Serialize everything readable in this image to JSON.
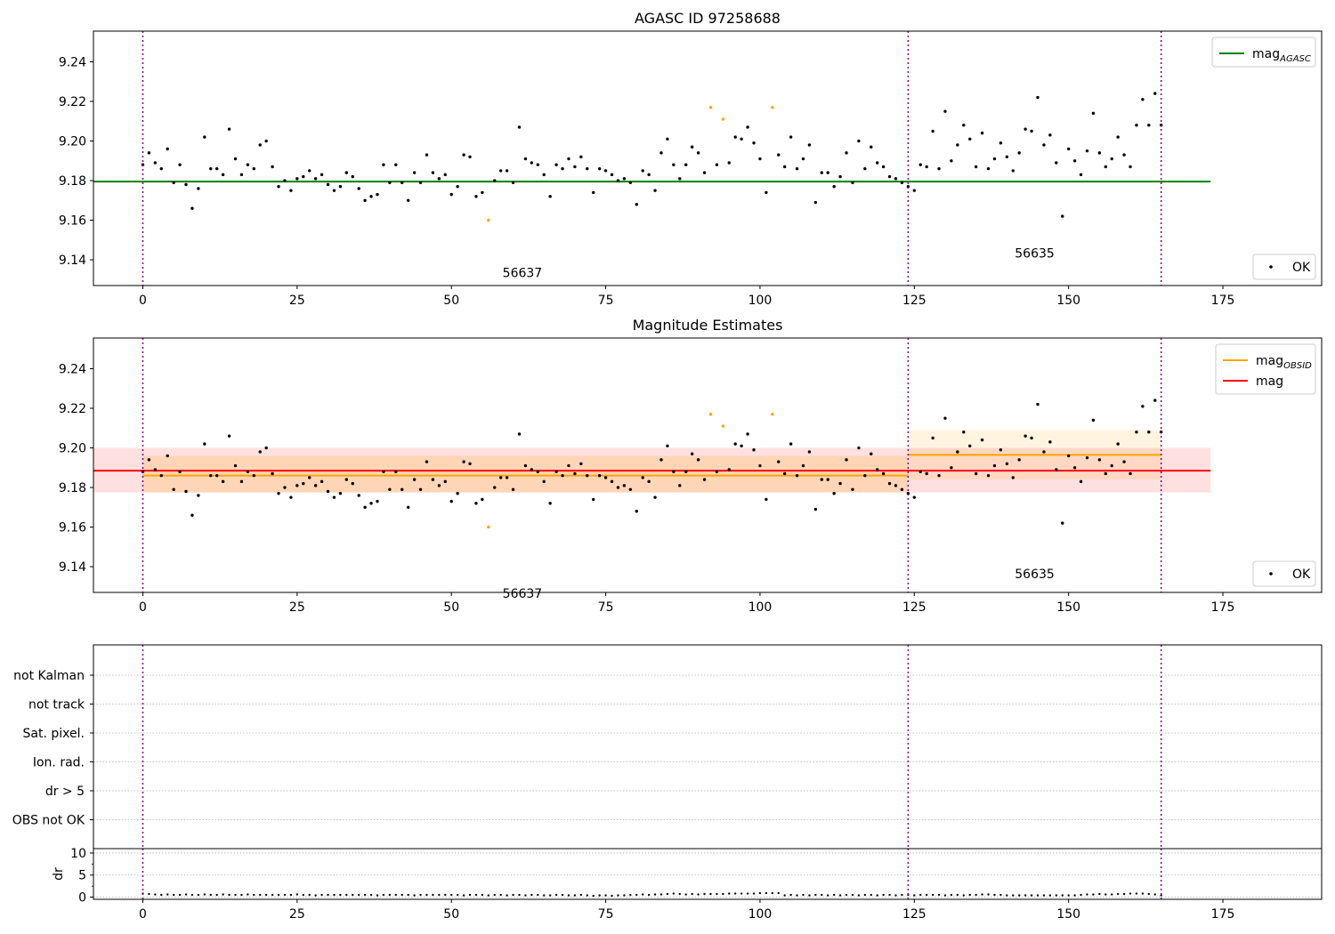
{
  "chart_data": [
    {
      "type": "scatter",
      "title": "AGASC ID 97258688",
      "xlabel": "",
      "ylabel": "",
      "xlim": [
        -8,
        191
      ],
      "ylim": [
        9.127,
        9.2555
      ],
      "xticks": [
        0,
        25,
        50,
        75,
        100,
        125,
        150,
        175
      ],
      "yticks": [
        9.14,
        9.16,
        9.18,
        9.2,
        9.22,
        9.24
      ],
      "grid": false,
      "legend_upper": {
        "position": "top-right",
        "entries": [
          {
            "label": "mag",
            "sub": "AGASC",
            "color": "#008000",
            "kind": "line"
          }
        ]
      },
      "legend_lower": {
        "position": "bottom-right",
        "entries": [
          {
            "label": "OK",
            "color": "#000000",
            "kind": "point"
          }
        ]
      },
      "vlines": [
        0,
        124,
        165
      ],
      "annotations": [
        {
          "text": "56637",
          "x": 61.5,
          "y": 9.1335
        },
        {
          "text": "56635",
          "x": 144.5,
          "y": 9.1435
        }
      ],
      "hlines": [
        {
          "name": "mag_AGASC",
          "y": 9.1795,
          "x": [
            -8,
            173
          ],
          "color": "#008000"
        }
      ],
      "series": [
        {
          "name": "OK",
          "color": "#000000",
          "points": "main"
        },
        {
          "name": "",
          "color": "#ffa500",
          "points": "flagged"
        }
      ]
    },
    {
      "type": "scatter",
      "title": "Magnitude Estimates",
      "xlabel": "",
      "ylabel": "",
      "xlim": [
        -8,
        191
      ],
      "ylim": [
        9.127,
        9.2555
      ],
      "xticks": [
        0,
        25,
        50,
        75,
        100,
        125,
        150,
        175
      ],
      "yticks": [
        9.14,
        9.16,
        9.18,
        9.2,
        9.22,
        9.24
      ],
      "grid": false,
      "legend_upper": {
        "position": "top-right",
        "entries": [
          {
            "label": "mag",
            "sub": "OBSID",
            "color": "#ffa500",
            "kind": "line"
          },
          {
            "label": "mag",
            "sub": "",
            "color": "#ff0000",
            "kind": "line"
          }
        ]
      },
      "legend_lower": {
        "position": "bottom-right",
        "entries": [
          {
            "label": "OK",
            "color": "#000000",
            "kind": "point"
          }
        ]
      },
      "vlines": [
        0,
        124,
        165
      ],
      "annotations": [
        {
          "text": "56637",
          "x": 61.5,
          "y": 9.1265
        },
        {
          "text": "56635",
          "x": 144.5,
          "y": 9.1365
        }
      ],
      "bands": [
        {
          "x": [
            -8,
            173
          ],
          "y": [
            9.1775,
            9.2
          ],
          "color": "#ff0000",
          "opacity": 0.12
        },
        {
          "x": [
            0,
            124
          ],
          "y": [
            9.1775,
            9.196
          ],
          "color": "#ffa500",
          "opacity": 0.18
        },
        {
          "x": [
            124,
            165
          ],
          "y": [
            9.184,
            9.209
          ],
          "color": "#ffa500",
          "opacity": 0.12
        }
      ],
      "hlines": [
        {
          "name": "mag",
          "y": 9.1885,
          "x": [
            -8,
            173
          ],
          "color": "#ff0000"
        },
        {
          "name": "mag_OBSID",
          "y": 9.186,
          "x": [
            0,
            124
          ],
          "color": "#ffa500"
        },
        {
          "name": "mag_OBSID",
          "y": 9.1965,
          "x": [
            124,
            165
          ],
          "color": "#ffa500"
        }
      ],
      "series": [
        {
          "name": "OK",
          "color": "#000000",
          "points": "main"
        },
        {
          "name": "",
          "color": "#ffa500",
          "points": "flagged"
        }
      ]
    },
    {
      "type": "scatter",
      "title": "",
      "xlabel": "",
      "ylabel": "",
      "xlim": [
        -8,
        191
      ],
      "categories": [
        "not Kalman",
        "not track",
        "Sat. pixel.",
        "Ion. rad.",
        "dr > 5",
        "OBS not OK"
      ],
      "grid": true,
      "vlines": [
        0,
        124,
        165
      ],
      "series": []
    },
    {
      "type": "scatter",
      "title": "",
      "xlabel": "",
      "ylabel": "dr",
      "xlim": [
        -8,
        191
      ],
      "ylim": [
        -0.5,
        11
      ],
      "xticks": [
        0,
        25,
        50,
        75,
        100,
        125,
        150,
        175
      ],
      "yticks": [
        0,
        5,
        10
      ],
      "grid": true,
      "vlines": [
        0,
        124,
        165
      ],
      "series": [
        {
          "name": "dr",
          "color": "#000000",
          "points": "dr"
        }
      ]
    }
  ],
  "points": {
    "main": [
      [
        0,
        9.188
      ],
      [
        1,
        9.194
      ],
      [
        2,
        9.189
      ],
      [
        3,
        9.186
      ],
      [
        4,
        9.196
      ],
      [
        5,
        9.179
      ],
      [
        6,
        9.188
      ],
      [
        7,
        9.178
      ],
      [
        8,
        9.166
      ],
      [
        9,
        9.176
      ],
      [
        10,
        9.202
      ],
      [
        11,
        9.186
      ],
      [
        12,
        9.186
      ],
      [
        13,
        9.183
      ],
      [
        14,
        9.206
      ],
      [
        15,
        9.191
      ],
      [
        16,
        9.183
      ],
      [
        17,
        9.188
      ],
      [
        18,
        9.186
      ],
      [
        19,
        9.198
      ],
      [
        20,
        9.2
      ],
      [
        21,
        9.187
      ],
      [
        22,
        9.177
      ],
      [
        23,
        9.18
      ],
      [
        24,
        9.175
      ],
      [
        25,
        9.181
      ],
      [
        26,
        9.182
      ],
      [
        27,
        9.185
      ],
      [
        28,
        9.181
      ],
      [
        29,
        9.183
      ],
      [
        30,
        9.178
      ],
      [
        31,
        9.175
      ],
      [
        32,
        9.177
      ],
      [
        33,
        9.184
      ],
      [
        34,
        9.182
      ],
      [
        35,
        9.176
      ],
      [
        36,
        9.17
      ],
      [
        37,
        9.172
      ],
      [
        38,
        9.173
      ],
      [
        39,
        9.188
      ],
      [
        40,
        9.179
      ],
      [
        41,
        9.188
      ],
      [
        42,
        9.179
      ],
      [
        43,
        9.17
      ],
      [
        44,
        9.184
      ],
      [
        45,
        9.179
      ],
      [
        46,
        9.193
      ],
      [
        47,
        9.184
      ],
      [
        48,
        9.181
      ],
      [
        49,
        9.183
      ],
      [
        50,
        9.173
      ],
      [
        51,
        9.177
      ],
      [
        52,
        9.193
      ],
      [
        53,
        9.192
      ],
      [
        54,
        9.172
      ],
      [
        55,
        9.174
      ],
      [
        57,
        9.18
      ],
      [
        58,
        9.185
      ],
      [
        59,
        9.185
      ],
      [
        60,
        9.179
      ],
      [
        61,
        9.207
      ],
      [
        62,
        9.191
      ],
      [
        63,
        9.189
      ],
      [
        64,
        9.188
      ],
      [
        65,
        9.183
      ],
      [
        66,
        9.172
      ],
      [
        67,
        9.188
      ],
      [
        68,
        9.186
      ],
      [
        69,
        9.191
      ],
      [
        70,
        9.187
      ],
      [
        71,
        9.192
      ],
      [
        72,
        9.186
      ],
      [
        73,
        9.174
      ],
      [
        74,
        9.186
      ],
      [
        75,
        9.185
      ],
      [
        76,
        9.183
      ],
      [
        77,
        9.18
      ],
      [
        78,
        9.181
      ],
      [
        79,
        9.179
      ],
      [
        80,
        9.168
      ],
      [
        81,
        9.185
      ],
      [
        82,
        9.183
      ],
      [
        83,
        9.175
      ],
      [
        84,
        9.194
      ],
      [
        85,
        9.201
      ],
      [
        86,
        9.188
      ],
      [
        87,
        9.181
      ],
      [
        88,
        9.188
      ],
      [
        89,
        9.197
      ],
      [
        90,
        9.194
      ],
      [
        91,
        9.184
      ],
      [
        93,
        9.188
      ],
      [
        95,
        9.189
      ],
      [
        96,
        9.202
      ],
      [
        97,
        9.201
      ],
      [
        98,
        9.207
      ],
      [
        99,
        9.199
      ],
      [
        100,
        9.191
      ],
      [
        101,
        9.174
      ],
      [
        103,
        9.193
      ],
      [
        104,
        9.187
      ],
      [
        105,
        9.202
      ],
      [
        106,
        9.186
      ],
      [
        107,
        9.191
      ],
      [
        108,
        9.198
      ],
      [
        109,
        9.169
      ],
      [
        110,
        9.184
      ],
      [
        111,
        9.184
      ],
      [
        112,
        9.177
      ],
      [
        113,
        9.182
      ],
      [
        114,
        9.194
      ],
      [
        115,
        9.179
      ],
      [
        116,
        9.2
      ],
      [
        117,
        9.186
      ],
      [
        118,
        9.197
      ],
      [
        119,
        9.189
      ],
      [
        120,
        9.187
      ],
      [
        121,
        9.182
      ],
      [
        122,
        9.181
      ],
      [
        123,
        9.179
      ],
      [
        124,
        9.177
      ],
      [
        125,
        9.175
      ],
      [
        126,
        9.188
      ],
      [
        127,
        9.187
      ],
      [
        128,
        9.205
      ],
      [
        129,
        9.186
      ],
      [
        130,
        9.215
      ],
      [
        131,
        9.19
      ],
      [
        132,
        9.198
      ],
      [
        133,
        9.208
      ],
      [
        134,
        9.201
      ],
      [
        135,
        9.187
      ],
      [
        136,
        9.204
      ],
      [
        137,
        9.186
      ],
      [
        138,
        9.191
      ],
      [
        139,
        9.199
      ],
      [
        140,
        9.192
      ],
      [
        141,
        9.185
      ],
      [
        142,
        9.194
      ],
      [
        143,
        9.206
      ],
      [
        144,
        9.205
      ],
      [
        145,
        9.222
      ],
      [
        146,
        9.198
      ],
      [
        147,
        9.203
      ],
      [
        148,
        9.189
      ],
      [
        149,
        9.162
      ],
      [
        150,
        9.196
      ],
      [
        151,
        9.19
      ],
      [
        152,
        9.183
      ],
      [
        153,
        9.195
      ],
      [
        154,
        9.214
      ],
      [
        155,
        9.194
      ],
      [
        156,
        9.187
      ],
      [
        157,
        9.191
      ],
      [
        158,
        9.202
      ],
      [
        159,
        9.193
      ],
      [
        160,
        9.187
      ],
      [
        161,
        9.208
      ],
      [
        162,
        9.221
      ],
      [
        163,
        9.208
      ],
      [
        164,
        9.224
      ],
      [
        165,
        9.208
      ]
    ],
    "flagged": [
      [
        56,
        9.16
      ],
      [
        92,
        9.217
      ],
      [
        94,
        9.211
      ],
      [
        102,
        9.217
      ]
    ],
    "dr": [
      [
        0,
        0.8
      ],
      [
        1,
        0.7
      ],
      [
        2,
        0.6
      ],
      [
        3,
        0.5
      ],
      [
        4,
        0.6
      ],
      [
        5,
        0.5
      ],
      [
        6,
        0.5
      ],
      [
        7,
        0.6
      ],
      [
        8,
        0.5
      ],
      [
        9,
        0.5
      ],
      [
        10,
        0.6
      ],
      [
        11,
        0.5
      ],
      [
        12,
        0.5
      ],
      [
        13,
        0.6
      ],
      [
        14,
        0.5
      ],
      [
        15,
        0.5
      ],
      [
        16,
        0.5
      ],
      [
        17,
        0.6
      ],
      [
        18,
        0.5
      ],
      [
        19,
        0.5
      ],
      [
        20,
        0.5
      ],
      [
        21,
        0.5
      ],
      [
        22,
        0.5
      ],
      [
        23,
        0.5
      ],
      [
        24,
        0.5
      ],
      [
        25,
        0.6
      ],
      [
        26,
        0.5
      ],
      [
        27,
        0.5
      ],
      [
        28,
        0.4
      ],
      [
        29,
        0.5
      ],
      [
        30,
        0.5
      ],
      [
        31,
        0.5
      ],
      [
        32,
        0.5
      ],
      [
        33,
        0.5
      ],
      [
        34,
        0.5
      ],
      [
        35,
        0.5
      ],
      [
        36,
        0.5
      ],
      [
        37,
        0.5
      ],
      [
        38,
        0.4
      ],
      [
        39,
        0.5
      ],
      [
        40,
        0.5
      ],
      [
        41,
        0.5
      ],
      [
        42,
        0.5
      ],
      [
        43,
        0.5
      ],
      [
        44,
        0.4
      ],
      [
        45,
        0.5
      ],
      [
        46,
        0.5
      ],
      [
        47,
        0.5
      ],
      [
        48,
        0.5
      ],
      [
        49,
        0.5
      ],
      [
        50,
        0.5
      ],
      [
        51,
        0.5
      ],
      [
        52,
        0.4
      ],
      [
        53,
        0.5
      ],
      [
        54,
        0.5
      ],
      [
        55,
        0.5
      ],
      [
        56,
        0.4
      ],
      [
        57,
        0.5
      ],
      [
        58,
        0.5
      ],
      [
        59,
        0.4
      ],
      [
        60,
        0.5
      ],
      [
        61,
        0.5
      ],
      [
        62,
        0.4
      ],
      [
        63,
        0.5
      ],
      [
        64,
        0.5
      ],
      [
        65,
        0.4
      ],
      [
        66,
        0.4
      ],
      [
        67,
        0.5
      ],
      [
        68,
        0.5
      ],
      [
        69,
        0.4
      ],
      [
        70,
        0.4
      ],
      [
        71,
        0.5
      ],
      [
        72,
        0.4
      ],
      [
        73,
        0.3
      ],
      [
        74,
        0.4
      ],
      [
        75,
        0.4
      ],
      [
        76,
        0.3
      ],
      [
        77,
        0.4
      ],
      [
        78,
        0.4
      ],
      [
        79,
        0.5
      ],
      [
        80,
        0.5
      ],
      [
        81,
        0.6
      ],
      [
        82,
        0.5
      ],
      [
        83,
        0.6
      ],
      [
        84,
        0.6
      ],
      [
        85,
        0.7
      ],
      [
        86,
        0.8
      ],
      [
        87,
        0.7
      ],
      [
        88,
        0.6
      ],
      [
        89,
        0.7
      ],
      [
        90,
        0.6
      ],
      [
        91,
        0.7
      ],
      [
        92,
        0.7
      ],
      [
        93,
        0.7
      ],
      [
        94,
        0.7
      ],
      [
        95,
        0.8
      ],
      [
        96,
        0.8
      ],
      [
        97,
        0.8
      ],
      [
        98,
        0.8
      ],
      [
        99,
        0.8
      ],
      [
        100,
        0.9
      ],
      [
        101,
        0.9
      ],
      [
        102,
        0.9
      ],
      [
        103,
        0.9
      ],
      [
        104,
        0.4
      ],
      [
        105,
        0.5
      ],
      [
        106,
        0.4
      ],
      [
        107,
        0.5
      ],
      [
        108,
        0.4
      ],
      [
        109,
        0.5
      ],
      [
        110,
        0.5
      ],
      [
        111,
        0.4
      ],
      [
        112,
        0.5
      ],
      [
        113,
        0.4
      ],
      [
        114,
        0.5
      ],
      [
        115,
        0.5
      ],
      [
        116,
        0.4
      ],
      [
        117,
        0.5
      ],
      [
        118,
        0.5
      ],
      [
        119,
        0.4
      ],
      [
        120,
        0.5
      ],
      [
        121,
        0.5
      ],
      [
        122,
        0.4
      ],
      [
        123,
        0.5
      ],
      [
        124,
        0.5
      ],
      [
        125,
        0.4
      ],
      [
        126,
        0.5
      ],
      [
        127,
        0.5
      ],
      [
        128,
        0.5
      ],
      [
        129,
        0.5
      ],
      [
        130,
        0.4
      ],
      [
        131,
        0.5
      ],
      [
        132,
        0.5
      ],
      [
        133,
        0.4
      ],
      [
        134,
        0.5
      ],
      [
        135,
        0.5
      ],
      [
        136,
        0.6
      ],
      [
        137,
        0.6
      ],
      [
        138,
        0.5
      ],
      [
        139,
        0.5
      ],
      [
        140,
        0.4
      ],
      [
        141,
        0.4
      ],
      [
        142,
        0.4
      ],
      [
        143,
        0.4
      ],
      [
        144,
        0.4
      ],
      [
        145,
        0.4
      ],
      [
        146,
        0.4
      ],
      [
        147,
        0.4
      ],
      [
        148,
        0.4
      ],
      [
        149,
        0.4
      ],
      [
        150,
        0.4
      ],
      [
        151,
        0.4
      ],
      [
        152,
        0.5
      ],
      [
        153,
        0.6
      ],
      [
        154,
        0.6
      ],
      [
        155,
        0.7
      ],
      [
        156,
        0.6
      ],
      [
        157,
        0.6
      ],
      [
        158,
        0.7
      ],
      [
        159,
        0.7
      ],
      [
        160,
        0.8
      ],
      [
        161,
        0.8
      ],
      [
        162,
        0.8
      ],
      [
        163,
        0.7
      ],
      [
        164,
        0.6
      ],
      [
        165,
        0.4
      ]
    ]
  }
}
